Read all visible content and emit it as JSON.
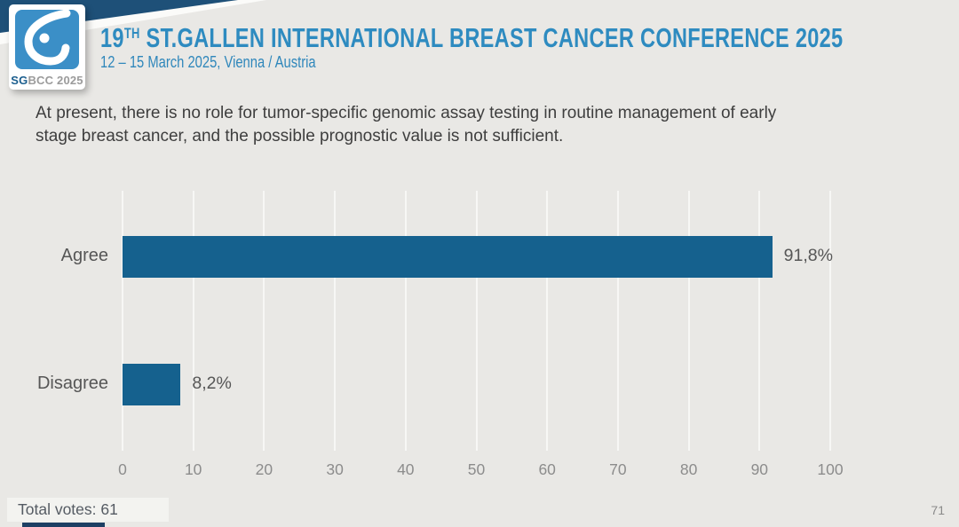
{
  "colors": {
    "slide_background": "#e9e8e5",
    "accent_blue": "#2e8bc0",
    "navy": "#1e5078",
    "logo_blue": "#3b8fc7",
    "bar_blue": "#15618e"
  },
  "header": {
    "title_number": "19",
    "title_sup": "TH",
    "title_rest": " ST.GALLEN INTERNATIONAL BREAST CANCER CONFERENCE 2025",
    "subtitle": "12 – 15 March 2025, Vienna / Austria",
    "logo": {
      "icon": "sgbcc-breast-icon",
      "label_bold": "SG",
      "label_rest": "BCC 2025"
    }
  },
  "question": {
    "line1": "At present, there is no role for tumor-specific genomic assay testing in routine management of early",
    "line2": "stage breast cancer, and the possible prognostic value is not sufficient."
  },
  "chart_data": {
    "type": "bar",
    "orientation": "horizontal",
    "categories": [
      "Agree",
      "Disagree"
    ],
    "values": [
      91.8,
      8.2
    ],
    "value_labels": [
      "91,8%",
      "8,2%"
    ],
    "xlim": [
      0,
      100
    ],
    "xticks": [
      0,
      10,
      20,
      30,
      40,
      50,
      60,
      70,
      80,
      90,
      100
    ],
    "grid": "vertical",
    "legend": "none",
    "bar_color": "#15618e"
  },
  "footer": {
    "total_votes": "Total votes: 61",
    "page_number": "71"
  }
}
